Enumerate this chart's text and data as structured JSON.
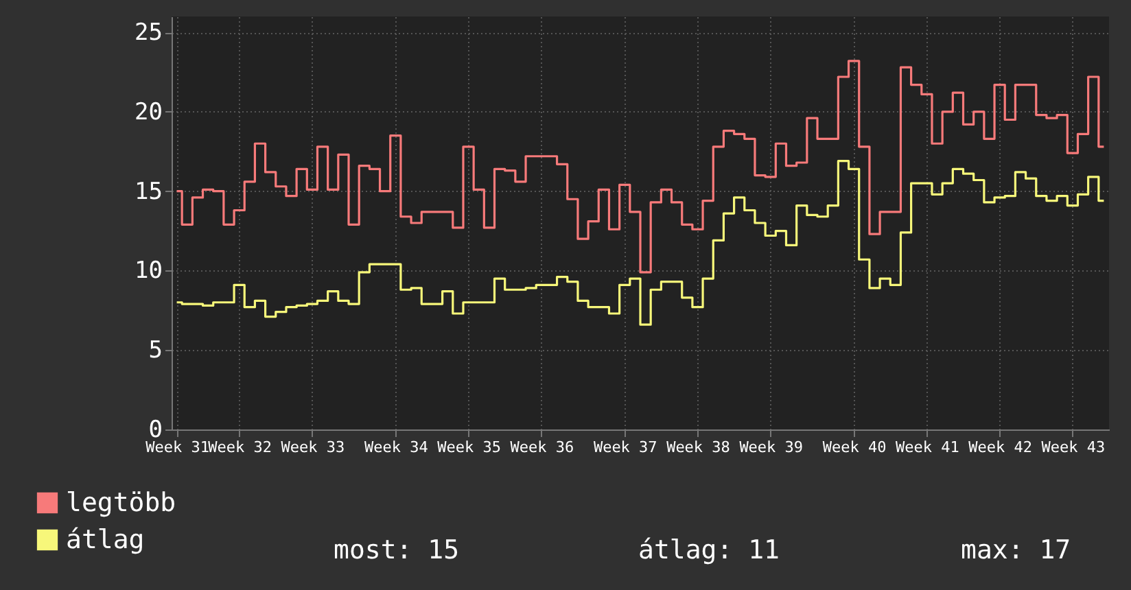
{
  "chart_data": {
    "type": "step",
    "categories": [
      "Week 31",
      null,
      null,
      null,
      null,
      null,
      "Week 32",
      null,
      null,
      null,
      null,
      null,
      null,
      "Week 33",
      null,
      null,
      null,
      null,
      null,
      null,
      null,
      "Week 34",
      null,
      null,
      null,
      null,
      null,
      null,
      "Week 35",
      null,
      null,
      null,
      null,
      null,
      null,
      "Week 36",
      null,
      null,
      null,
      null,
      null,
      null,
      null,
      "Week 37",
      null,
      null,
      null,
      null,
      null,
      null,
      "Week 38",
      null,
      null,
      null,
      null,
      null,
      null,
      "Week 39",
      null,
      null,
      null,
      null,
      null,
      null,
      null,
      "Week 40",
      null,
      null,
      null,
      null,
      null,
      null,
      "Week 41",
      null,
      null,
      null,
      null,
      null,
      null,
      "Week 42",
      null,
      null,
      null,
      null,
      null,
      null,
      "Week 43",
      null,
      null,
      null
    ],
    "ylim": [
      0,
      26
    ],
    "yticks": [
      0,
      5,
      10,
      15,
      20,
      25
    ],
    "grid": true,
    "legend": "bottom left",
    "annotations": [
      "most: 15",
      "átlag: 11",
      "max: 17"
    ],
    "series": [
      {
        "name": "legtöbb",
        "color": "#f77a7a",
        "values": [
          15.0,
          12.9,
          14.6,
          15.1,
          15.0,
          12.9,
          13.8,
          15.6,
          18.0,
          16.2,
          15.3,
          14.7,
          16.4,
          15.1,
          17.8,
          15.1,
          17.3,
          12.9,
          16.6,
          16.4,
          15.0,
          18.5,
          13.4,
          13.0,
          13.7,
          13.7,
          13.7,
          12.7,
          17.8,
          15.1,
          12.7,
          16.4,
          16.3,
          15.6,
          17.2,
          17.2,
          17.2,
          16.7,
          14.5,
          12.0,
          13.1,
          15.1,
          12.6,
          15.4,
          13.7,
          9.9,
          14.3,
          15.1,
          14.3,
          12.9,
          12.6,
          14.4,
          17.8,
          18.8,
          18.6,
          18.3,
          16.0,
          15.9,
          18.0,
          16.6,
          16.8,
          19.6,
          18.3,
          18.3,
          22.2,
          23.2,
          17.8,
          12.3,
          13.7,
          13.7,
          22.8,
          21.7,
          21.1,
          18.0,
          20.0,
          21.2,
          19.2,
          20.0,
          18.3,
          21.7,
          19.5,
          21.7,
          21.7,
          19.8,
          19.6,
          19.8,
          17.4,
          18.6,
          22.2,
          17.8
        ]
      },
      {
        "name": "átlag",
        "color": "#f7f77a",
        "values": [
          8.0,
          7.9,
          7.9,
          7.8,
          8.0,
          8.0,
          9.1,
          7.7,
          8.1,
          7.1,
          7.4,
          7.7,
          7.8,
          7.9,
          8.1,
          8.7,
          8.1,
          7.9,
          9.9,
          10.4,
          10.4,
          10.4,
          8.8,
          8.9,
          7.9,
          7.9,
          8.7,
          7.3,
          8.0,
          8.0,
          8.0,
          9.5,
          8.8,
          8.8,
          8.9,
          9.1,
          9.1,
          9.6,
          9.3,
          8.1,
          7.7,
          7.7,
          7.3,
          9.1,
          9.5,
          6.6,
          8.8,
          9.3,
          9.3,
          8.3,
          7.7,
          9.5,
          11.9,
          13.6,
          14.6,
          13.8,
          13.0,
          12.2,
          12.5,
          11.6,
          14.1,
          13.5,
          13.4,
          14.1,
          16.9,
          16.4,
          10.7,
          8.9,
          9.5,
          9.1,
          12.4,
          15.5,
          15.5,
          14.8,
          15.5,
          16.4,
          16.1,
          15.7,
          14.3,
          14.6,
          14.7,
          16.2,
          15.8,
          14.7,
          14.4,
          14.7,
          14.1,
          14.8,
          15.9,
          14.4
        ]
      }
    ]
  }
}
